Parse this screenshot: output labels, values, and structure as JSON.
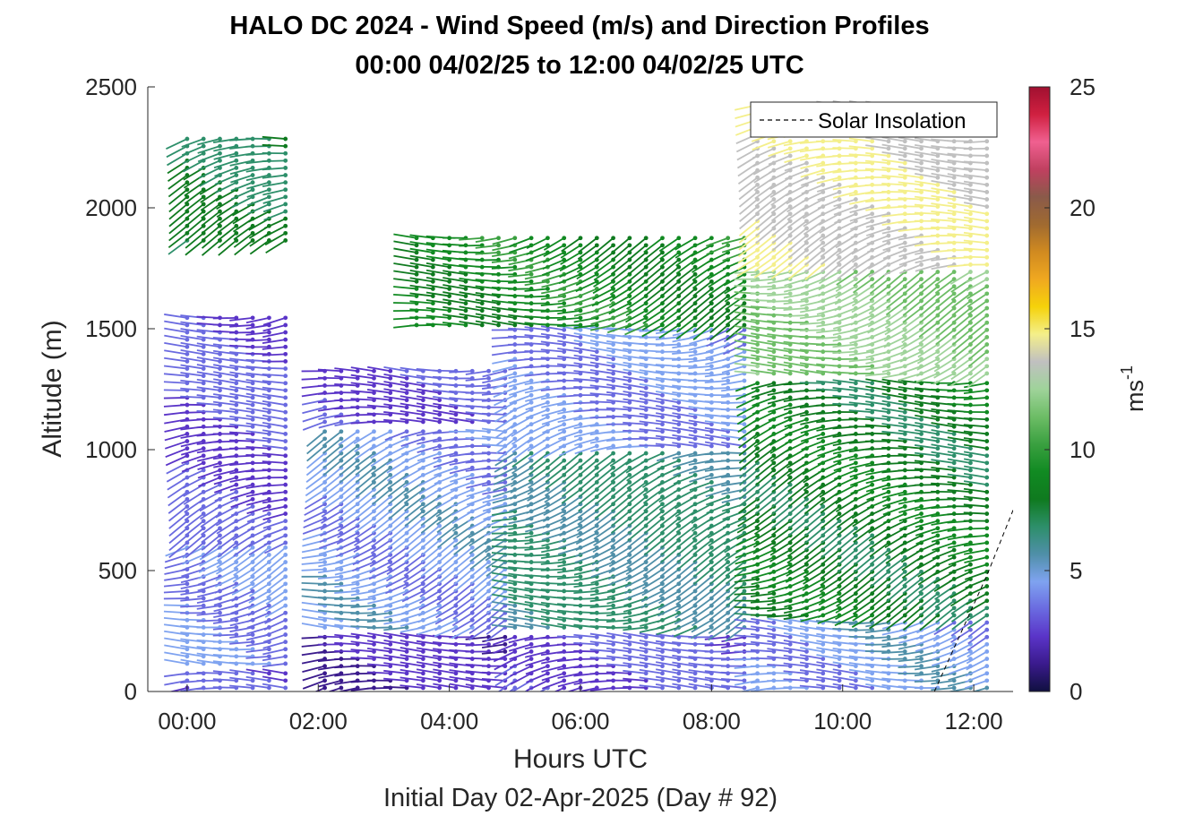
{
  "chart_data": {
    "type": "wind-barb-profile",
    "title": "HALO DC 2024 - Wind Speed (m/s) and Direction Profiles",
    "subtitle": "00:00 04/02/25 to 12:00 04/02/25  UTC",
    "xlabel": "Hours UTC",
    "xlabel2": "Initial Day 02-Apr-2025 (Day # 92)",
    "ylabel": "Altitude (m)",
    "x_ticks": [
      "00:00",
      "02:00",
      "04:00",
      "06:00",
      "08:00",
      "10:00",
      "12:00"
    ],
    "y_ticks": [
      "0",
      "500",
      "1000",
      "1500",
      "2000",
      "2500"
    ],
    "xlim_hours": [
      -0.6,
      12.6
    ],
    "ylim": [
      0,
      2500
    ],
    "colorbar": {
      "label": "ms",
      "label_exp": "-1",
      "ticks": [
        "0",
        "5",
        "10",
        "15",
        "20",
        "25"
      ],
      "range": [
        0,
        25
      ],
      "colors": [
        "#101040",
        "#3a1a8c",
        "#5a34c8",
        "#6a6ae0",
        "#7fa3f0",
        "#4f8fa8",
        "#2d8f6a",
        "#0f7a1f",
        "#118a22",
        "#3aa040",
        "#6dbd66",
        "#9fd39a",
        "#c0c0c0",
        "#f4ef8a",
        "#f5d20a",
        "#f0a820",
        "#d08a20",
        "#a06a30",
        "#8a5a4a",
        "#c04060",
        "#f06090",
        "#d02040",
        "#a01030"
      ]
    },
    "legend": {
      "label": "Solar Insolation",
      "position": "top-right",
      "style": "dashed black line"
    },
    "solar_insolation": {
      "x_hours": [
        11.4,
        11.8,
        12.2,
        12.6
      ],
      "altitude_m": [
        0,
        240,
        480,
        750
      ]
    },
    "speed_bands": [
      {
        "x_hours": [
          0,
          1.7
        ],
        "alt_range_m": [
          0,
          100
        ],
        "speed_ms": 2.5
      },
      {
        "x_hours": [
          0,
          1.7
        ],
        "alt_range_m": [
          100,
          600
        ],
        "speed_ms": 4.3
      },
      {
        "x_hours": [
          0,
          1.7
        ],
        "alt_range_m": [
          600,
          1550
        ],
        "speed_ms": 3.0
      },
      {
        "x_hours": [
          0,
          1.7
        ],
        "alt_range_m": [
          1850,
          2300
        ],
        "speed_ms": 7.5
      },
      {
        "x_hours": [
          2.1,
          4.9
        ],
        "alt_range_m": [
          0,
          250
        ],
        "speed_ms": 2.0
      },
      {
        "x_hours": [
          2.1,
          4.9
        ],
        "alt_range_m": [
          250,
          1100
        ],
        "speed_ms": 4.5
      },
      {
        "x_hours": [
          2.1,
          4.9
        ],
        "alt_range_m": [
          1100,
          1350
        ],
        "speed_ms": 2.8
      },
      {
        "x_hours": [
          5.0,
          8.6
        ],
        "alt_range_m": [
          0,
          250
        ],
        "speed_ms": 3.0
      },
      {
        "x_hours": [
          5.0,
          8.6
        ],
        "alt_range_m": [
          250,
          1000
        ],
        "speed_ms": 6.5
      },
      {
        "x_hours": [
          5.0,
          8.6
        ],
        "alt_range_m": [
          1000,
          1500
        ],
        "speed_ms": 4.2
      },
      {
        "x_hours": [
          3.5,
          8.6
        ],
        "alt_range_m": [
          1500,
          1900
        ],
        "speed_ms": 9.0
      },
      {
        "x_hours": [
          8.7,
          12.2
        ],
        "alt_range_m": [
          0,
          300
        ],
        "speed_ms": 4.5
      },
      {
        "x_hours": [
          8.7,
          12.2
        ],
        "alt_range_m": [
          300,
          1300
        ],
        "speed_ms": 8.0
      },
      {
        "x_hours": [
          8.7,
          12.2
        ],
        "alt_range_m": [
          1300,
          1750
        ],
        "speed_ms": 12.0
      },
      {
        "x_hours": [
          8.7,
          12.2
        ],
        "alt_range_m": [
          1750,
          2450
        ],
        "speed_ms": 14.0
      }
    ]
  }
}
